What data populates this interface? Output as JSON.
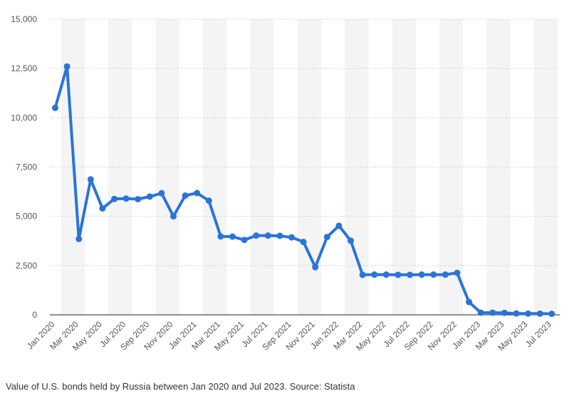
{
  "chart_data": {
    "type": "line",
    "title": "",
    "xlabel": "",
    "ylabel": "",
    "ylim": [
      0,
      15000
    ],
    "yticks": [
      0,
      2500,
      5000,
      7500,
      10000,
      12500,
      15000
    ],
    "ytick_labels": [
      "0",
      "2,500",
      "5,000",
      "7,500",
      "10,000",
      "12,500",
      "15,000"
    ],
    "grid": true,
    "legend": "none",
    "line_color": "#2a74d8",
    "band_color": "#f4f4f4",
    "categories": [
      "Jan 2020",
      "Feb 2020",
      "Mar 2020",
      "Apr 2020",
      "May 2020",
      "Jun 2020",
      "Jul 2020",
      "Aug 2020",
      "Sep 2020",
      "Oct 2020",
      "Nov 2020",
      "Dec 2020",
      "Jan 2021",
      "Feb 2021",
      "Mar 2021",
      "Apr 2021",
      "May 2021",
      "Jun 2021",
      "Jul 2021",
      "Aug 2021",
      "Sep 2021",
      "Oct 2021",
      "Nov 2021",
      "Dec 2021",
      "Jan 2022",
      "Feb 2022",
      "Mar 2022",
      "Apr 2022",
      "May 2022",
      "Jun 2022",
      "Jul 2022",
      "Aug 2022",
      "Sep 2022",
      "Oct 2022",
      "Nov 2022",
      "Dec 2022",
      "Jan 2023",
      "Feb 2023",
      "Mar 2023",
      "Apr 2023",
      "May 2023",
      "Jun 2023",
      "Jul 2023"
    ],
    "xtick_labels": [
      "Jan 2020",
      "Mar 2020",
      "May 2020",
      "Jul 2020",
      "Sep 2020",
      "Nov 2020",
      "Jan 2021",
      "Mar 2021",
      "May 2021",
      "Jul 2021",
      "Sep 2021",
      "Nov 2021",
      "Jan 2022",
      "Mar 2022",
      "May 2022",
      "Jul 2022",
      "Sep 2022",
      "Nov 2022",
      "Jan 2023",
      "Mar 2023",
      "May 2023",
      "Jul 2023"
    ],
    "series": [
      {
        "values": [
          10500,
          12600,
          3850,
          6870,
          5400,
          5880,
          5900,
          5870,
          6000,
          6170,
          5000,
          6050,
          6180,
          5790,
          3980,
          3970,
          3800,
          4020,
          4020,
          4010,
          3930,
          3700,
          2420,
          3950,
          4520,
          3760,
          2030,
          2040,
          2040,
          2030,
          2030,
          2040,
          2040,
          2040,
          2130,
          650,
          110,
          110,
          100,
          70,
          60,
          60,
          50
        ]
      }
    ]
  },
  "caption": "Value of U.S. bonds held by Russia between Jan 2020 and Jul 2023. Source: Statista"
}
